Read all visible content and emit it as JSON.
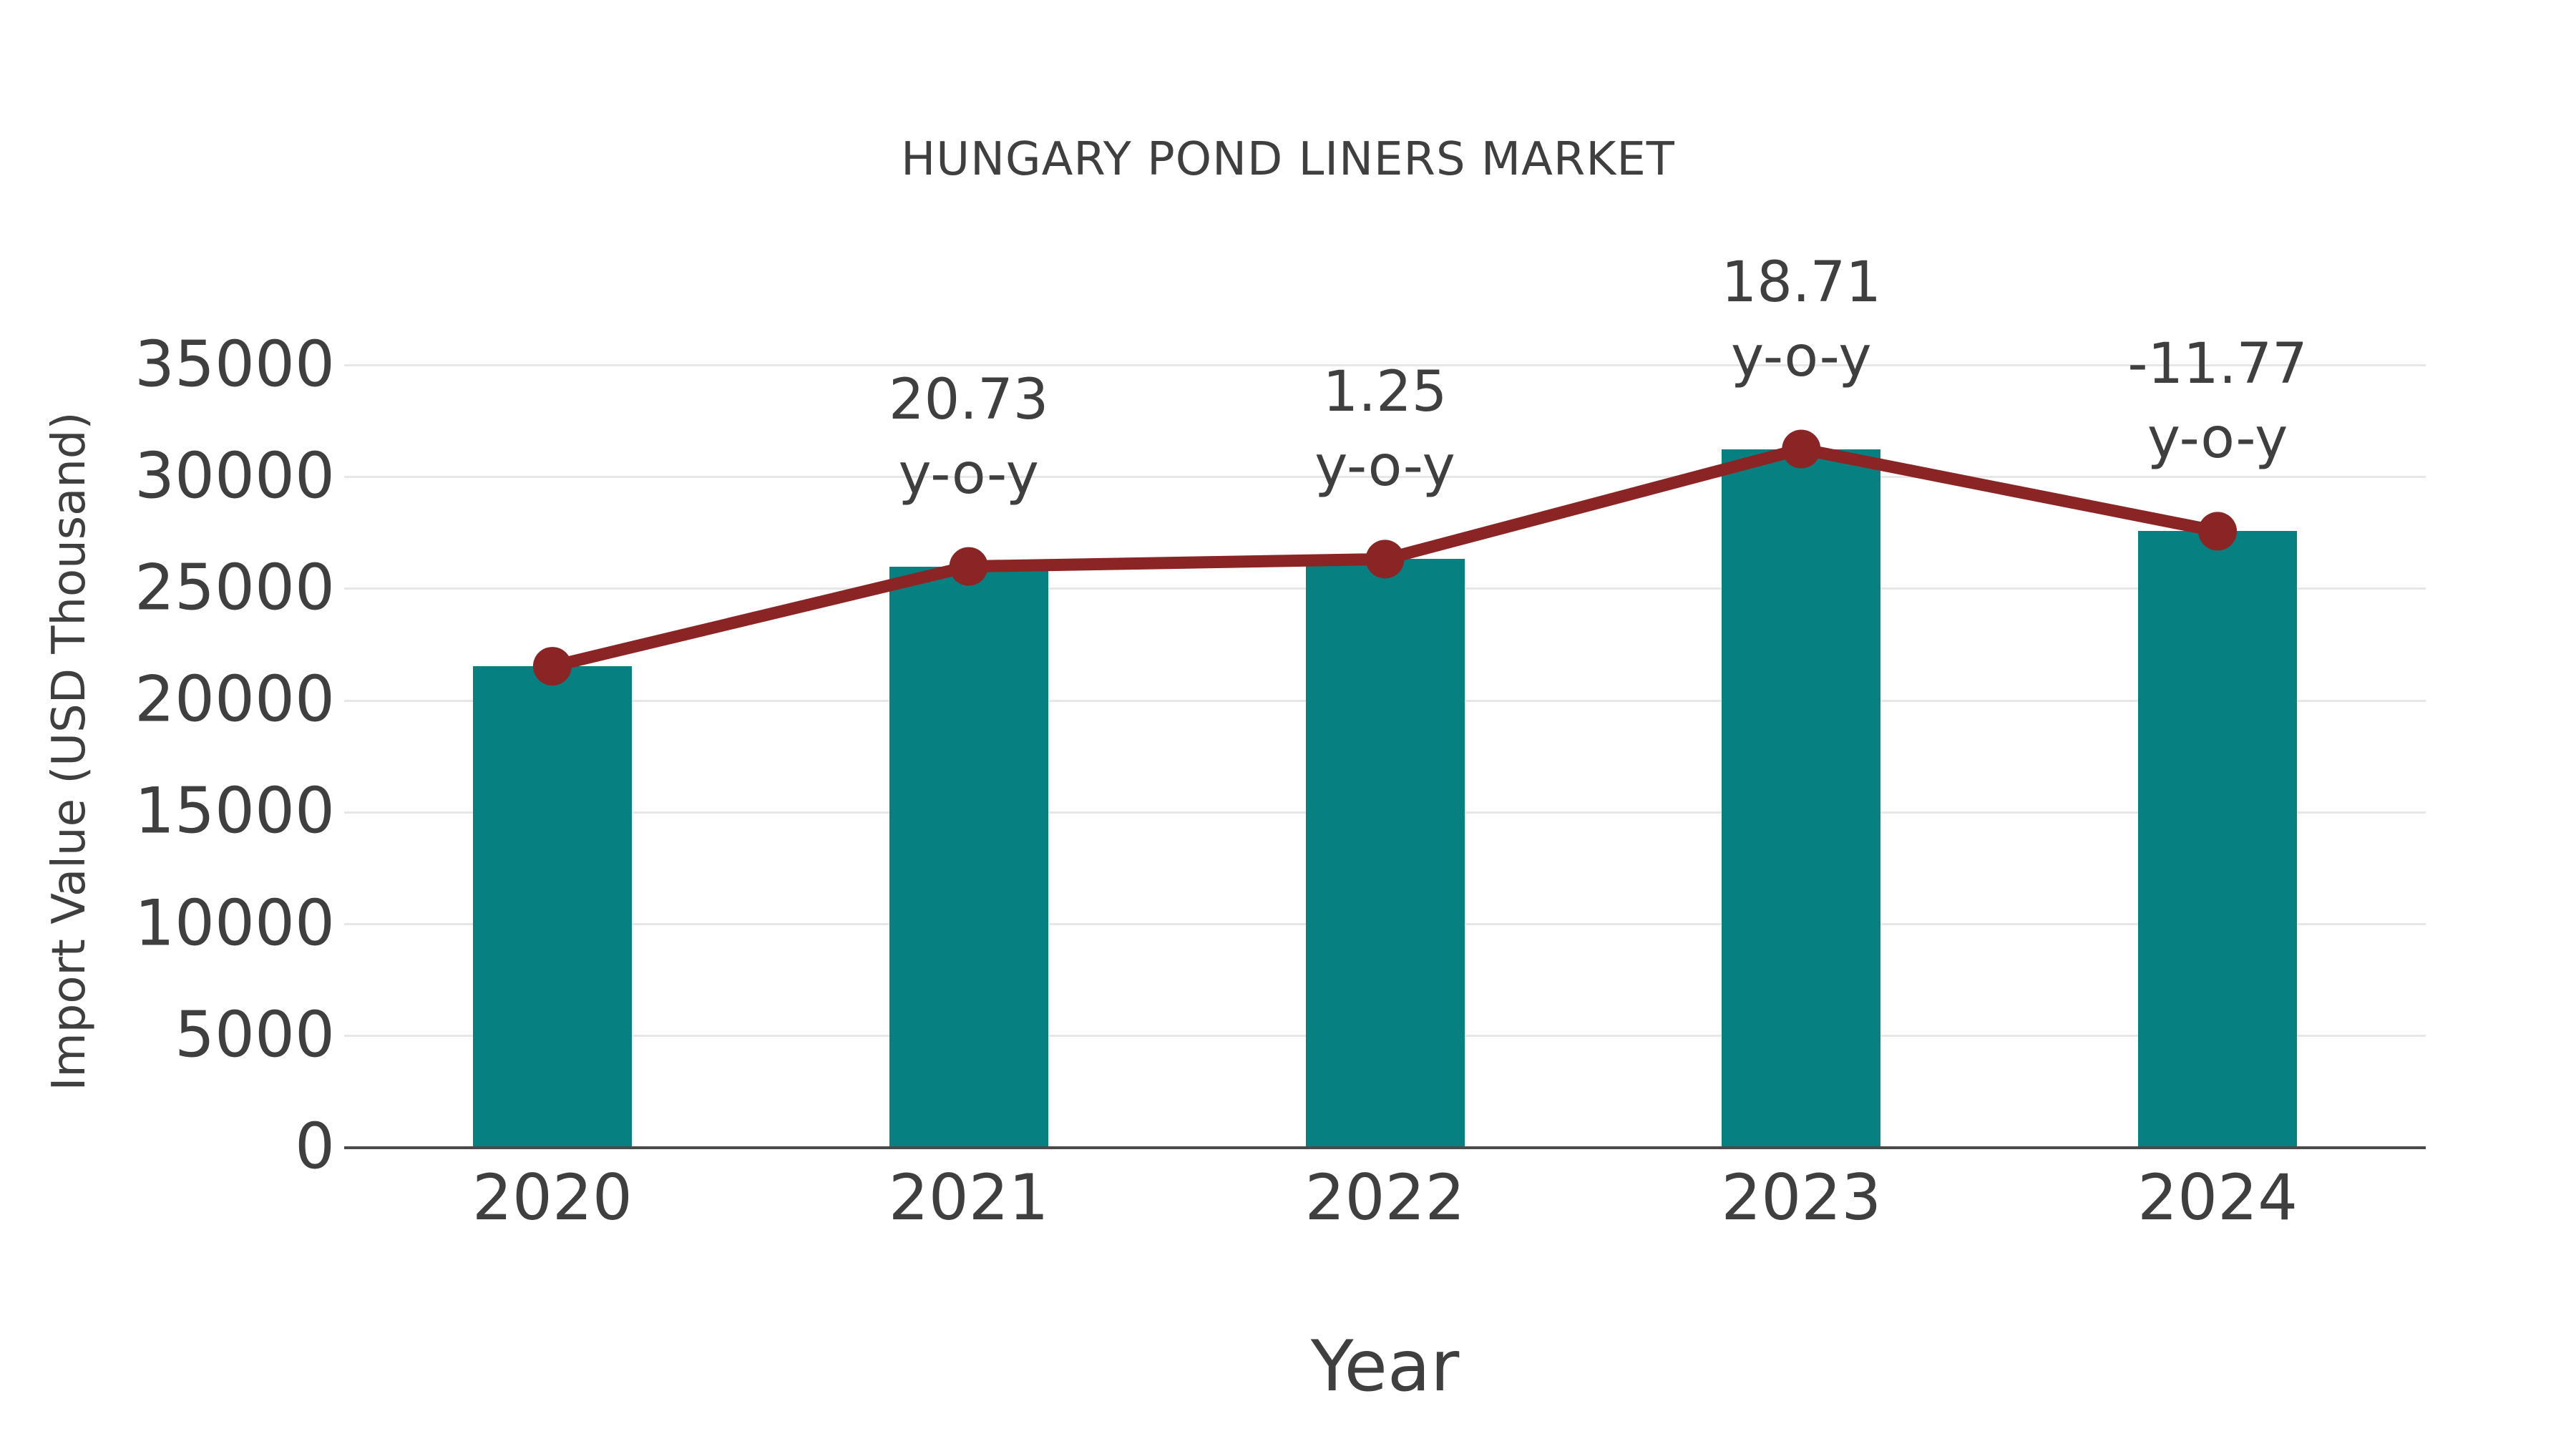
{
  "page": {
    "background": "#ffffff"
  },
  "chart_data": {
    "type": "bar",
    "title": "HUNGARY POND LINERS MARKET",
    "xlabel": "Year",
    "ylabel": "Import Value (USD Thousand)",
    "categories": [
      "2020",
      "2021",
      "2022",
      "2023",
      "2024"
    ],
    "series": [
      {
        "name": "import-value-bars",
        "type": "bar",
        "color": "#068080",
        "values": [
          21540,
          26006,
          26331,
          31258,
          27579
        ]
      },
      {
        "name": "yoy-trend-line",
        "type": "line",
        "color": "#8b2525",
        "values": [
          21540,
          26006,
          26331,
          31258,
          27579
        ]
      }
    ],
    "annotations": [
      {
        "category": "2021",
        "line1": "20.73",
        "line2": "y-o-y"
      },
      {
        "category": "2022",
        "line1": "1.25",
        "line2": "y-o-y"
      },
      {
        "category": "2023",
        "line1": "18.71",
        "line2": "y-o-y"
      },
      {
        "category": "2024",
        "line1": "-11.77",
        "line2": "y-o-y"
      }
    ],
    "y_ticks": [
      0,
      5000,
      10000,
      15000,
      20000,
      25000,
      30000,
      35000
    ],
    "ylim": [
      0,
      37900
    ],
    "grid": "horizontal",
    "legend": "none",
    "text_color": "#3f3f3f",
    "gridline_color": "#e7e7e7",
    "axis_line_color": "#4a4a4a"
  }
}
